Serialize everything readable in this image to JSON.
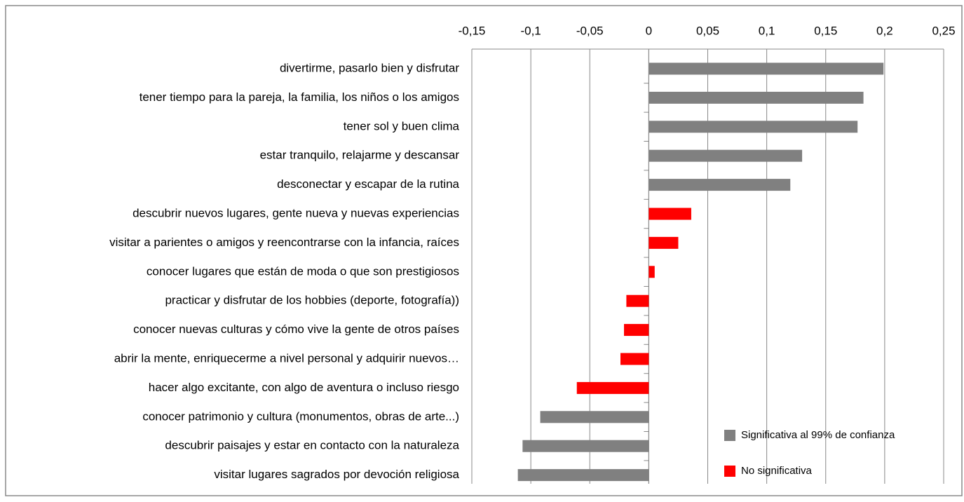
{
  "chart_data": {
    "type": "barh",
    "categories": [
      "divertirme, pasarlo bien y disfrutar",
      "tener tiempo para la pareja, la familia, los niños o los amigos",
      "tener sol y buen clima",
      "estar tranquilo, relajarme y descansar",
      "desconectar y escapar de la rutina",
      "descubrir nuevos lugares, gente nueva y nuevas experiencias",
      "visitar a parientes o amigos y reencontrarse con la infancia, raíces",
      "conocer lugares que están de moda o que son prestigiosos",
      "practicar y disfrutar de los hobbies (deporte, fotografía))",
      "conocer nuevas culturas y cómo vive la gente de otros países",
      "abrir la mente, enriquecerme a nivel personal y adquirir nuevos…",
      "hacer algo excitante, con algo de aventura o incluso riesgo",
      "conocer patrimonio y cultura (monumentos, obras de arte...)",
      "descubrir paisajes y estar en contacto con la naturaleza",
      "visitar lugares sagrados por devoción religiosa"
    ],
    "series": [
      {
        "name": "Significativa al 99% de confianza",
        "color": "#808080",
        "values": [
          0.199,
          0.182,
          0.177,
          0.13,
          0.12,
          null,
          null,
          null,
          null,
          null,
          null,
          null,
          -0.092,
          -0.107,
          -0.111
        ]
      },
      {
        "name": "No significativa",
        "color": "#ff0000",
        "values": [
          null,
          null,
          null,
          null,
          null,
          0.036,
          0.025,
          0.005,
          -0.019,
          -0.021,
          -0.024,
          -0.061,
          null,
          null,
          null
        ]
      }
    ],
    "xlim": [
      -0.15,
      0.25
    ],
    "xticks": [
      {
        "value": -0.15,
        "label": "-0,15"
      },
      {
        "value": -0.1,
        "label": "-0,1"
      },
      {
        "value": -0.05,
        "label": "-0,05"
      },
      0,
      {
        "value": 0.05,
        "label": "0,05"
      },
      {
        "value": 0.1,
        "label": "0,1"
      },
      {
        "value": 0.15,
        "label": "0,15"
      },
      {
        "value": 0.2,
        "label": "0,2"
      },
      {
        "value": 0.25,
        "label": "0,25"
      }
    ],
    "grid": true,
    "legend": "lower right"
  }
}
